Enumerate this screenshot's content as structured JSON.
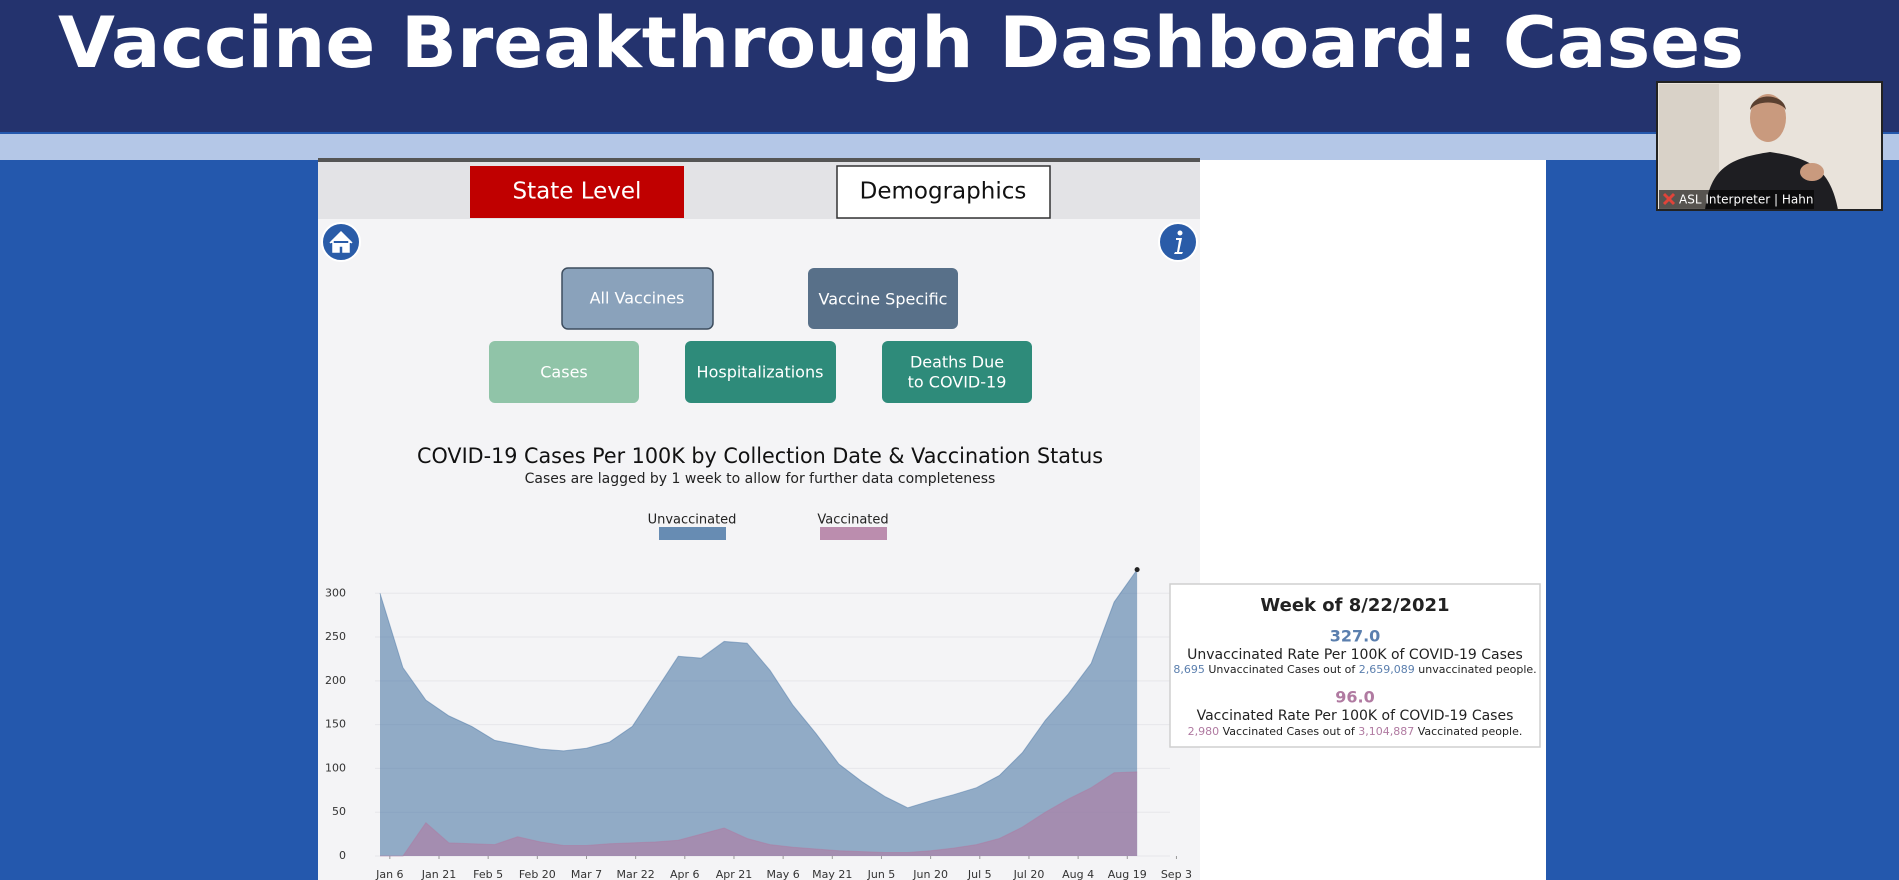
{
  "header": {
    "title": "Vaccine Breakthrough Dashboard: Cases"
  },
  "tabs": [
    "State Level",
    "Demographics"
  ],
  "filters": {
    "vaccine": [
      "All Vaccines",
      "Vaccine Specific"
    ],
    "measure": [
      "Cases",
      "Hospitalizations",
      [
        "Deaths Due",
        "to COVID-19"
      ]
    ]
  },
  "chart_data": {
    "type": "area",
    "title": "COVID-19 Cases Per 100K by Collection Date & Vaccination Status",
    "subtitle": "Cases are lagged by 1 week to allow for further data completeness",
    "x": [
      -3,
      4,
      11,
      18,
      25,
      32,
      39,
      46,
      53,
      60,
      67,
      74,
      81,
      88,
      95,
      102,
      109,
      116,
      123,
      130,
      137,
      144,
      151,
      158,
      165,
      172,
      179,
      186,
      193,
      200,
      207,
      214,
      221,
      228
    ],
    "xlim": [
      -3,
      242
    ],
    "xticks": [
      {
        "value": 0,
        "label": "Jan 6"
      },
      {
        "value": 15,
        "label": "Jan 21"
      },
      {
        "value": 30,
        "label": "Feb 5"
      },
      {
        "value": 45,
        "label": "Feb 20"
      },
      {
        "value": 60,
        "label": "Mar 7"
      },
      {
        "value": 75,
        "label": "Mar 22"
      },
      {
        "value": 90,
        "label": "Apr 6"
      },
      {
        "value": 105,
        "label": "Apr 21"
      },
      {
        "value": 120,
        "label": "May 6"
      },
      {
        "value": 135,
        "label": "May 21"
      },
      {
        "value": 150,
        "label": "Jun 5"
      },
      {
        "value": 165,
        "label": "Jun 20"
      },
      {
        "value": 180,
        "label": "Jul 5"
      },
      {
        "value": 195,
        "label": "Jul 20"
      },
      {
        "value": 210,
        "label": "Aug 4"
      },
      {
        "value": 225,
        "label": "Aug 19"
      },
      {
        "value": 240,
        "label": "Sep 3"
      }
    ],
    "ylim": [
      0,
      330
    ],
    "yticks": [
      0,
      50,
      100,
      150,
      200,
      250,
      300
    ],
    "grid": true,
    "series": [
      {
        "name": "Unvaccinated",
        "color": "#4e79a7",
        "values": [
          300,
          215,
          178,
          160,
          148,
          132,
          127,
          122,
          120,
          123,
          130,
          148,
          188,
          228,
          226,
          245,
          243,
          212,
          172,
          140,
          105,
          85,
          68,
          55,
          63,
          70,
          78,
          92,
          118,
          155,
          185,
          220,
          290,
          327
        ]
      },
      {
        "name": "Vaccinated",
        "color": "#b07aa1",
        "values": [
          0,
          0,
          38,
          15,
          14,
          13,
          22,
          16,
          12,
          12,
          14,
          15,
          16,
          18,
          25,
          32,
          20,
          13,
          10,
          8,
          6,
          5,
          4,
          4,
          6,
          9,
          13,
          20,
          33,
          50,
          65,
          78,
          95,
          96
        ]
      }
    ]
  },
  "tooltip": {
    "title": "Week of 8/22/2021",
    "unvaccinated": {
      "rate": "327.0",
      "label": "Unvaccinated Rate Per 100K of COVID-19 Cases",
      "cases": "8,695",
      "text1": " Unvaccinated Cases out of ",
      "population": "2,659,089",
      "text2": " unvaccinated people."
    },
    "vaccinated": {
      "rate": "96.0",
      "label": "Vaccinated Rate Per 100K of COVID-19 Cases",
      "cases": "2,980",
      "text1": " Vaccinated Cases out of ",
      "population": "3,104,887",
      "text2": " Vaccinated people."
    }
  },
  "video": {
    "label": "ASL Interpreter | Hahn"
  }
}
